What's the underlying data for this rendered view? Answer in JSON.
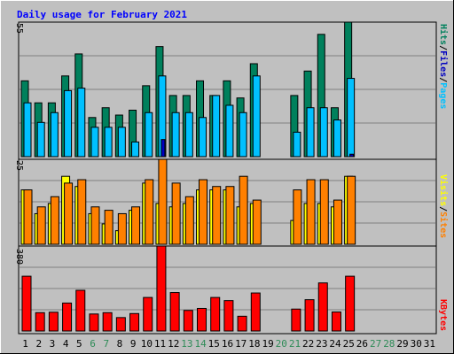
{
  "chart_data": {
    "type": "bar",
    "title": "Daily usage for February 2021",
    "days": [
      "1",
      "2",
      "3",
      "4",
      "5",
      "6",
      "7",
      "8",
      "9",
      "10",
      "11",
      "12",
      "13",
      "14",
      "15",
      "16",
      "17",
      "18",
      "19",
      "20",
      "21",
      "22",
      "23",
      "24",
      "25",
      "26",
      "27",
      "28",
      "29",
      "30",
      "31"
    ],
    "weekend_days": [
      6,
      7,
      13,
      14,
      20,
      21,
      27,
      28
    ],
    "colors": {
      "title": "#0000ff",
      "weekday_label": "#000000",
      "weekend_label": "#2e8b57",
      "hits": "#00805c",
      "files": "#00c0ff",
      "pages": "#0000c0",
      "visits": "#ffff00",
      "sites": "#ff8000",
      "kbytes": "#ff0000",
      "panel_bg": "#c0c0c0",
      "grid": "#808080"
    },
    "panels": [
      {
        "max_label": "55",
        "ymax": 55,
        "legend": [
          {
            "text": "Pages",
            "color": "#00c0ff"
          },
          {
            "text": "/",
            "color": "#000000"
          },
          {
            "text": "Files",
            "color": "#0000c0"
          },
          {
            "text": "/",
            "color": "#000000"
          },
          {
            "text": "Hits",
            "color": "#00805c"
          }
        ],
        "series": [
          {
            "name": "Hits",
            "color": "#00805c",
            "values": [
              31,
              22,
              22,
              33,
              42,
              16,
              20,
              17,
              19,
              29,
              45,
              25,
              25,
              31,
              25,
              31,
              24,
              38,
              0,
              0,
              25,
              35,
              50,
              20,
              55,
              0,
              0,
              0,
              0,
              0,
              0
            ]
          },
          {
            "name": "Files",
            "color": "#00c0ff",
            "values": [
              22,
              14,
              18,
              27,
              28,
              12,
              12,
              12,
              6,
              18,
              33,
              18,
              18,
              16,
              25,
              21,
              18,
              33,
              0,
              0,
              10,
              20,
              20,
              15,
              32,
              0,
              0,
              0,
              0,
              0,
              0
            ]
          },
          {
            "name": "Pages",
            "color": "#0000c0",
            "values": [
              0,
              0,
              0,
              0,
              0,
              0,
              0,
              0,
              0,
              0,
              7,
              0,
              0,
              0,
              0,
              0,
              0,
              0,
              0,
              0,
              0,
              0,
              0,
              0,
              1,
              0,
              0,
              0,
              0,
              0,
              0
            ]
          }
        ]
      },
      {
        "max_label": "25",
        "ymax": 25,
        "legend": [
          {
            "text": "Sites",
            "color": "#ff8000"
          },
          {
            "text": "/",
            "color": "#000000"
          },
          {
            "text": "Visits",
            "color": "#ffff00"
          }
        ],
        "series": [
          {
            "name": "Visits",
            "color": "#ffff00",
            "values": [
              16,
              9,
              12,
              20,
              17,
              9,
              6,
              4,
              10,
              18,
              12,
              11,
              12,
              16,
              16,
              16,
              11,
              12,
              0,
              0,
              7,
              12,
              12,
              11,
              20,
              0,
              0,
              0,
              0,
              0,
              0
            ]
          },
          {
            "name": "Sites",
            "color": "#ff8000",
            "values": [
              16,
              11,
              14,
              18,
              19,
              11,
              10,
              9,
              11,
              19,
              25,
              18,
              14,
              19,
              17,
              17,
              20,
              13,
              0,
              0,
              16,
              19,
              19,
              13,
              20,
              0,
              0,
              0,
              0,
              0,
              0
            ]
          }
        ]
      },
      {
        "max_label": "380",
        "ymax": 380,
        "legend": [
          {
            "text": "KBytes",
            "color": "#ff0000"
          }
        ],
        "series": [
          {
            "name": "KBytes",
            "color": "#ff0000",
            "values": [
              245,
              82,
              84,
              125,
              182,
              76,
              82,
              60,
              78,
              150,
              380,
              172,
              92,
              101,
              150,
              136,
              66,
              170,
              0,
              0,
              98,
              140,
              215,
              85,
              245,
              0,
              0,
              0,
              0,
              0,
              0
            ]
          }
        ]
      }
    ]
  }
}
